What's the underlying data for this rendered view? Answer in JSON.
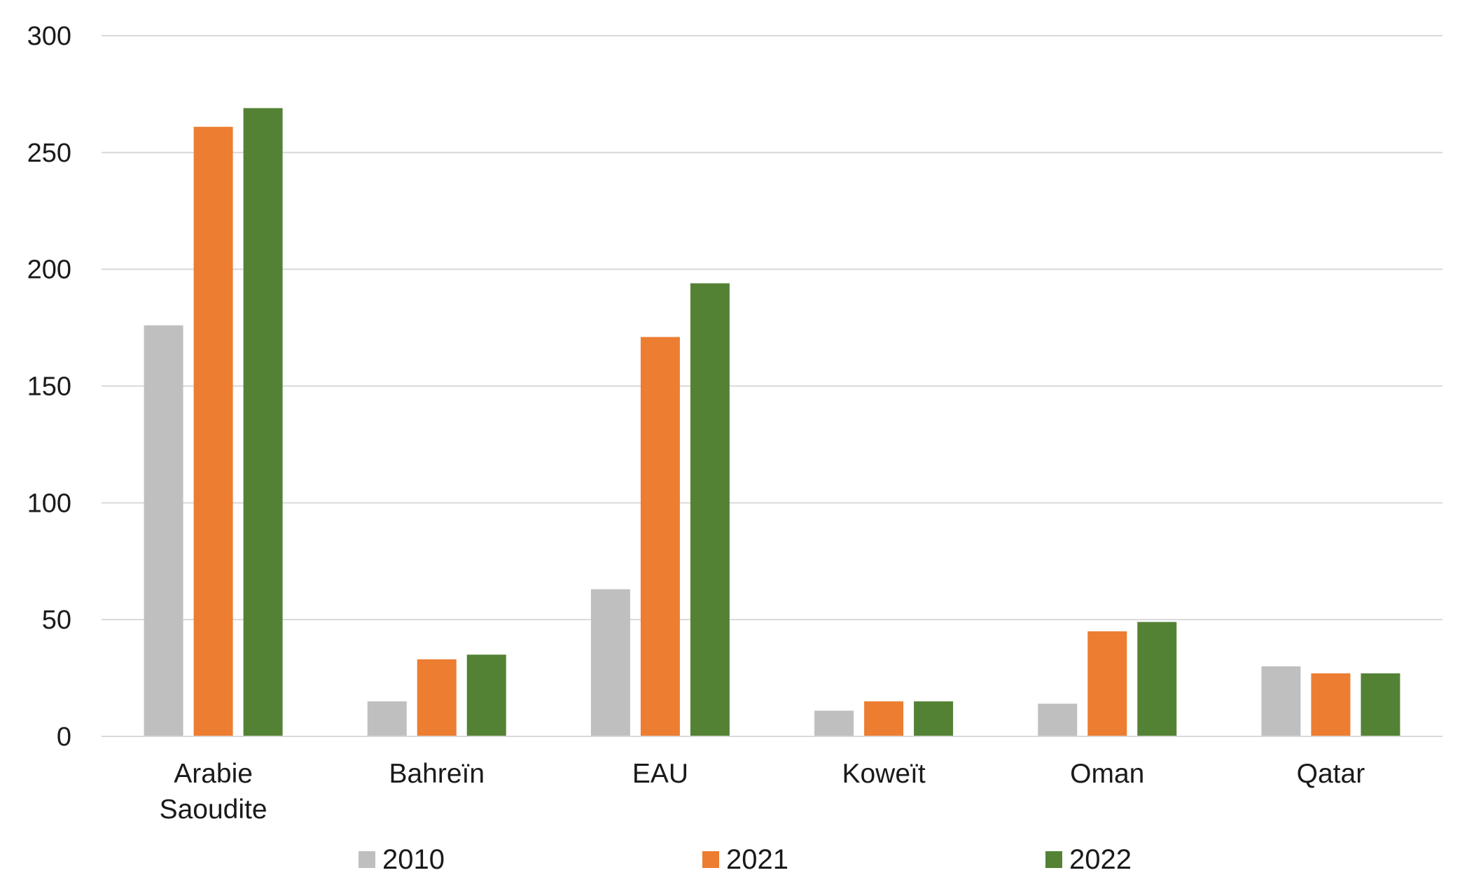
{
  "chart_data": {
    "type": "bar",
    "title": "",
    "xlabel": "",
    "ylabel": "",
    "ylim": [
      0,
      300
    ],
    "yticks": [
      0,
      50,
      100,
      150,
      200,
      250,
      300
    ],
    "grid": true,
    "legend_position": "bottom",
    "categories": [
      [
        "Arabie",
        "Saoudite"
      ],
      [
        "Bahreïn"
      ],
      [
        "EAU"
      ],
      [
        "Koweït"
      ],
      [
        "Oman"
      ],
      [
        "Qatar"
      ]
    ],
    "series": [
      {
        "name": "2010",
        "color": "#bfbfbf",
        "values": [
          176,
          15,
          63,
          11,
          14,
          30
        ]
      },
      {
        "name": "2021",
        "color": "#ed7d31",
        "values": [
          261,
          33,
          171,
          15,
          45,
          27
        ]
      },
      {
        "name": "2022",
        "color": "#548235",
        "values": [
          269,
          35,
          194,
          15,
          49,
          27
        ]
      }
    ]
  }
}
